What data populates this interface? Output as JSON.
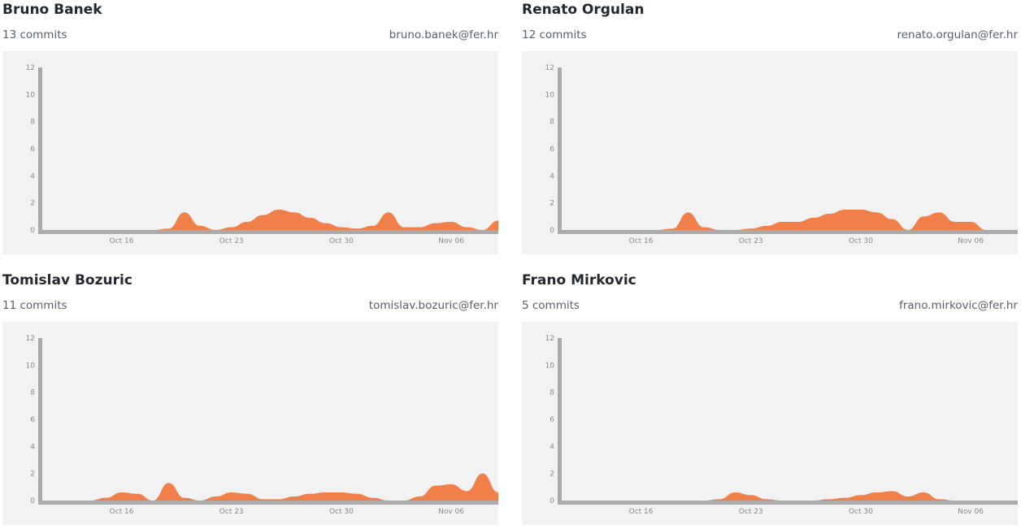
{
  "contributors": [
    {
      "name": "Bruno Banek",
      "commits": "13 commits",
      "email": "bruno.banek@fer.hr"
    },
    {
      "name": "Renato Orgulan",
      "commits": "12 commits",
      "email": "renato.orgulan@fer.hr"
    },
    {
      "name": "Tomislav Bozuric",
      "commits": "11 commits",
      "email": "tomislav.bozuric@fer.hr"
    },
    {
      "name": "Frano Mirkovic",
      "commits": "5 commits",
      "email": "frano.mirkovic@fer.hr"
    }
  ],
  "colors": {
    "area": "#f17f49",
    "axis": "#aaaaaa",
    "panel": "#f2f2f2"
  },
  "chart_data": [
    {
      "type": "area",
      "yticks": [
        "0",
        "2",
        "4",
        "6",
        "8",
        "10",
        "12"
      ],
      "ylim": [
        0,
        12
      ],
      "xticks": [
        {
          "label": "Oct 16",
          "day": 16
        },
        {
          "label": "Oct 23",
          "day": 23
        },
        {
          "label": "Oct 30",
          "day": 30
        },
        {
          "label": "Nov 06",
          "day": 37
        }
      ],
      "xlim": [
        11,
        40
      ],
      "x": [
        11,
        16,
        17,
        18,
        19,
        20,
        21,
        22,
        23,
        24,
        25,
        26,
        27,
        28,
        29,
        30,
        31,
        32,
        33,
        34,
        35,
        36,
        37,
        38,
        39,
        40
      ],
      "values": [
        0,
        0,
        0,
        0,
        0.1,
        1.3,
        0.3,
        0,
        0.2,
        0.6,
        1.1,
        1.5,
        1.3,
        0.9,
        0.5,
        0.2,
        0.1,
        0.3,
        1.3,
        0.2,
        0.2,
        0.5,
        0.6,
        0.2,
        0,
        0.7
      ]
    },
    {
      "type": "area",
      "yticks": [
        "0",
        "2",
        "4",
        "6",
        "8",
        "10",
        "12"
      ],
      "ylim": [
        0,
        12
      ],
      "xticks": [
        {
          "label": "Oct 16",
          "day": 16
        },
        {
          "label": "Oct 23",
          "day": 23
        },
        {
          "label": "Oct 30",
          "day": 30
        },
        {
          "label": "Nov 06",
          "day": 37
        }
      ],
      "xlim": [
        11,
        40
      ],
      "x": [
        11,
        16,
        17,
        18,
        19,
        20,
        21,
        22,
        23,
        24,
        25,
        26,
        27,
        28,
        29,
        30,
        31,
        32,
        33,
        34,
        35,
        36,
        37,
        38,
        39,
        40
      ],
      "values": [
        0,
        0,
        0,
        0.1,
        1.3,
        0.2,
        0,
        0,
        0.1,
        0.3,
        0.6,
        0.6,
        0.9,
        1.2,
        1.5,
        1.5,
        1.3,
        0.8,
        0,
        1.0,
        1.3,
        0.6,
        0.6,
        0,
        0,
        0
      ]
    },
    {
      "type": "area",
      "yticks": [
        "0",
        "2",
        "4",
        "6",
        "8",
        "10",
        "12"
      ],
      "ylim": [
        0,
        12
      ],
      "xticks": [
        {
          "label": "Oct 16",
          "day": 16
        },
        {
          "label": "Oct 23",
          "day": 23
        },
        {
          "label": "Oct 30",
          "day": 30
        },
        {
          "label": "Nov 06",
          "day": 37
        }
      ],
      "xlim": [
        11,
        40
      ],
      "x": [
        11,
        14,
        15,
        16,
        17,
        18,
        19,
        20,
        21,
        22,
        23,
        24,
        25,
        26,
        27,
        28,
        29,
        30,
        31,
        32,
        33,
        34,
        35,
        36,
        37,
        38,
        39,
        40
      ],
      "values": [
        0,
        0,
        0.2,
        0.6,
        0.5,
        0,
        1.3,
        0.2,
        0,
        0.3,
        0.6,
        0.5,
        0.1,
        0.1,
        0.3,
        0.5,
        0.6,
        0.6,
        0.5,
        0.2,
        0,
        0,
        0.3,
        1.1,
        1.2,
        0.7,
        2.0,
        0.6
      ]
    },
    {
      "type": "area",
      "yticks": [
        "0",
        "2",
        "4",
        "6",
        "8",
        "10",
        "12"
      ],
      "ylim": [
        0,
        12
      ],
      "xticks": [
        {
          "label": "Oct 16",
          "day": 16
        },
        {
          "label": "Oct 23",
          "day": 23
        },
        {
          "label": "Oct 30",
          "day": 30
        },
        {
          "label": "Nov 06",
          "day": 37
        }
      ],
      "xlim": [
        11,
        40
      ],
      "x": [
        11,
        20,
        21,
        22,
        23,
        24,
        25,
        26,
        27,
        28,
        29,
        30,
        31,
        32,
        33,
        34,
        35,
        36,
        37,
        38,
        39,
        40
      ],
      "values": [
        0,
        0,
        0.1,
        0.6,
        0.4,
        0.1,
        0,
        0,
        0,
        0.1,
        0.2,
        0.4,
        0.6,
        0.7,
        0.3,
        0.6,
        0.1,
        0,
        0,
        0,
        0,
        0
      ]
    }
  ]
}
